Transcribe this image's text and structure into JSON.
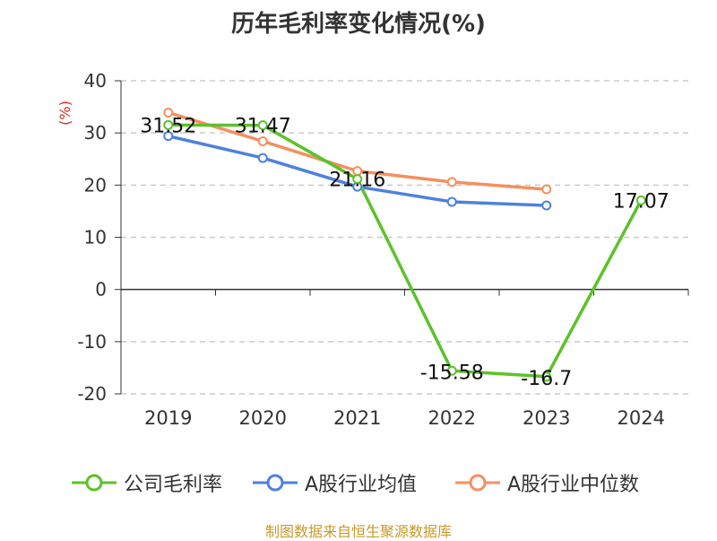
{
  "title": "历年毛利率变化情况(%)",
  "source": "制图数据来自恒生聚源数据库",
  "chart_data": {
    "type": "line",
    "title": "历年毛利率变化情况(%)",
    "ylabel": "(%)",
    "categories": [
      "2019",
      "2020",
      "2021",
      "2022",
      "2023",
      "2024"
    ],
    "ylim": [
      -20,
      40
    ],
    "yticks": [
      "40",
      "30",
      "20",
      "10",
      "0",
      "-10",
      "-20"
    ],
    "grid": true,
    "legend_position": "bottom",
    "series": [
      {
        "name": "公司毛利率",
        "color": "#5cc22a",
        "values": [
          31.52,
          31.47,
          21.16,
          -15.58,
          -16.7,
          17.07
        ],
        "labels": [
          "31.52",
          "31.47",
          "21.16",
          "-15.58",
          "-16.7",
          "17.07"
        ]
      },
      {
        "name": "A股行业均值",
        "color": "#4e81de",
        "values": [
          29.4,
          25.2,
          19.7,
          16.8,
          16.1,
          null
        ]
      },
      {
        "name": "A股行业中位数",
        "color": "#f49060",
        "values": [
          33.9,
          28.4,
          22.7,
          20.6,
          19.2,
          null
        ]
      }
    ]
  }
}
